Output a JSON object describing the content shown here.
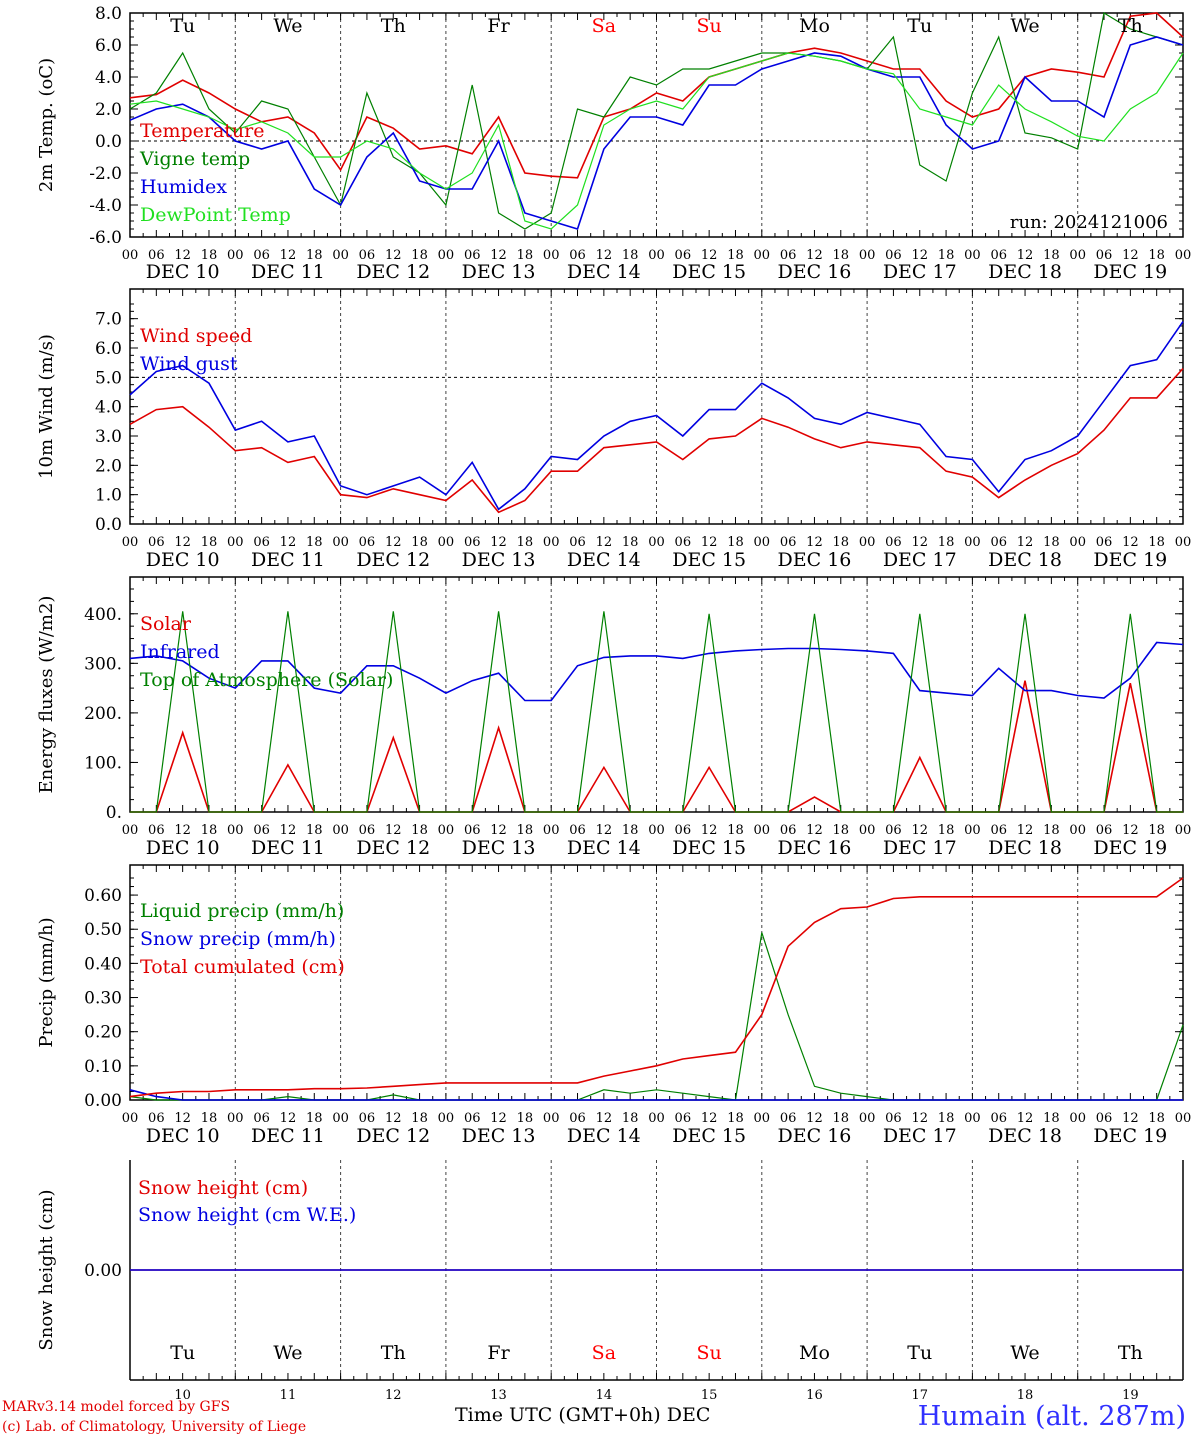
{
  "footer": {
    "credit_line1": "MARv3.14 model forced by GFS",
    "credit_line2": "(c) Lab. of Climatology, University of Liege",
    "x_axis_title": "Time UTC (GMT+0h) DEC",
    "station": "Humain (alt. 287m)"
  },
  "days": {
    "weekday_labels": [
      "Tu",
      "We",
      "Th",
      "Fr",
      "Sa",
      "Su",
      "Mo",
      "Tu",
      "We",
      "Th"
    ],
    "weekend_indices": [
      4,
      5
    ],
    "date_labels": [
      "DEC 10",
      "DEC 11",
      "DEC 12",
      "DEC 13",
      "DEC 14",
      "DEC 15",
      "DEC 16",
      "DEC 17",
      "DEC 18",
      "DEC 19"
    ],
    "day_numbers": [
      "10",
      "11",
      "12",
      "13",
      "14",
      "15",
      "16",
      "17",
      "18",
      "19"
    ],
    "hour_ticks": [
      "00",
      "06",
      "12",
      "18"
    ],
    "final_hour": "00"
  },
  "colors": {
    "red": "#e00000",
    "green": "#008000",
    "blue": "#0000e0",
    "lightgreen": "#20e020",
    "weekend": "#ff0000"
  },
  "chart_data": [
    {
      "type": "line",
      "ylabel": "2m Temp. (oC)",
      "ylim": [
        -6,
        8
      ],
      "yticks": [
        "-6.0",
        "-4.0",
        "-2.0",
        "0.0",
        "2.0",
        "4.0",
        "6.0",
        "8.0"
      ],
      "annotation": "run: 2024121006",
      "x_hours": [
        0,
        6,
        12,
        18,
        24,
        30,
        36,
        42,
        48,
        54,
        60,
        66,
        72,
        78,
        84,
        90,
        96,
        102,
        108,
        114,
        120,
        126,
        132,
        138,
        144,
        150,
        156,
        162,
        168,
        174,
        180,
        186,
        192,
        198,
        204,
        210,
        216,
        222,
        228,
        234,
        240
      ],
      "series": [
        {
          "name": "Temperature",
          "color": "red",
          "values": [
            2.7,
            2.9,
            3.8,
            3.0,
            2.0,
            1.2,
            1.5,
            0.5,
            -1.8,
            1.5,
            0.8,
            -0.5,
            -0.3,
            -0.8,
            1.5,
            -2.0,
            -2.2,
            -2.3,
            1.5,
            2.0,
            3.0,
            2.5,
            4.0,
            4.5,
            5.0,
            5.5,
            5.8,
            5.5,
            5.0,
            4.5,
            4.5,
            2.5,
            1.5,
            2.0,
            4.0,
            4.5,
            4.3,
            4.0,
            7.8,
            8.0,
            6.5
          ]
        },
        {
          "name": "Vigne temp",
          "color": "green",
          "values": [
            2.0,
            3.0,
            5.5,
            2.0,
            0.5,
            2.5,
            2.0,
            -1.0,
            -4.0,
            3.0,
            -1.0,
            -2.0,
            -4.0,
            3.5,
            -4.5,
            -5.5,
            -4.5,
            2.0,
            1.5,
            4.0,
            3.5,
            4.5,
            4.5,
            5.0,
            5.5,
            5.5,
            5.3,
            5.0,
            4.5,
            6.5,
            -1.5,
            -2.5,
            3.0,
            6.5,
            0.5,
            0.2,
            -0.5,
            8.0,
            7.0,
            6.5,
            6.0
          ]
        },
        {
          "name": "Humidex",
          "color": "blue",
          "values": [
            1.3,
            2.0,
            2.3,
            1.5,
            0.0,
            -0.5,
            0.0,
            -3.0,
            -4.0,
            -1.0,
            0.5,
            -2.5,
            -3.0,
            -3.0,
            0.0,
            -4.5,
            -5.0,
            -5.5,
            -0.5,
            1.5,
            1.5,
            1.0,
            3.5,
            3.5,
            4.5,
            5.0,
            5.5,
            5.3,
            4.5,
            4.0,
            4.0,
            1.0,
            -0.5,
            0.0,
            4.0,
            2.5,
            2.5,
            1.5,
            6.0,
            6.5,
            6.0
          ]
        },
        {
          "name": "DewPoint Temp",
          "color": "lightgreen",
          "values": [
            2.3,
            2.5,
            2.0,
            1.5,
            0.7,
            1.2,
            0.5,
            -1.0,
            -1.0,
            0.0,
            -0.5,
            -2.0,
            -3.0,
            -2.0,
            1.0,
            -5.0,
            -5.5,
            -4.0,
            1.0,
            2.0,
            2.5,
            2.0,
            4.0,
            4.5,
            5.0,
            5.5,
            5.3,
            5.0,
            4.5,
            4.2,
            2.0,
            1.5,
            1.0,
            3.5,
            2.0,
            1.2,
            0.3,
            0.0,
            2.0,
            3.0,
            5.5
          ]
        }
      ]
    },
    {
      "type": "line",
      "ylabel": "10m Wind (m/s)",
      "ylim": [
        0,
        7.5
      ],
      "yticks": [
        "0.0",
        "1.0",
        "2.0",
        "3.0",
        "4.0",
        "5.0",
        "6.0",
        "7.0"
      ],
      "x_hours": [
        0,
        6,
        12,
        18,
        24,
        30,
        36,
        42,
        48,
        54,
        60,
        66,
        72,
        78,
        84,
        90,
        96,
        102,
        108,
        114,
        120,
        126,
        132,
        138,
        144,
        150,
        156,
        162,
        168,
        174,
        180,
        186,
        192,
        198,
        204,
        210,
        216,
        222,
        228,
        234,
        240
      ],
      "series": [
        {
          "name": "Wind speed",
          "color": "red",
          "values": [
            3.4,
            3.9,
            4.0,
            3.3,
            2.5,
            2.6,
            2.1,
            2.3,
            1.0,
            0.9,
            1.2,
            1.0,
            0.8,
            1.5,
            0.4,
            0.8,
            1.8,
            1.8,
            2.6,
            2.7,
            2.8,
            2.2,
            2.9,
            3.0,
            3.6,
            3.3,
            2.9,
            2.6,
            2.8,
            2.7,
            2.6,
            1.8,
            1.6,
            0.9,
            1.5,
            2.0,
            2.4,
            3.2,
            4.3,
            4.3,
            5.3
          ]
        },
        {
          "name": "Wind gust",
          "color": "blue",
          "values": [
            4.4,
            5.2,
            5.4,
            4.8,
            3.2,
            3.5,
            2.8,
            3.0,
            1.3,
            1.0,
            1.3,
            1.6,
            1.0,
            2.1,
            0.5,
            1.2,
            2.3,
            2.2,
            3.0,
            3.5,
            3.7,
            3.0,
            3.9,
            3.9,
            4.8,
            4.3,
            3.6,
            3.4,
            3.8,
            3.6,
            3.4,
            2.3,
            2.2,
            1.1,
            2.2,
            2.5,
            3.0,
            4.2,
            5.4,
            5.6,
            6.9
          ]
        }
      ]
    },
    {
      "type": "line",
      "ylabel": "Energy fluxes (W/m2)",
      "ylim": [
        0,
        450
      ],
      "yticks": [
        "0.",
        "100.",
        "200.",
        "300.",
        "400."
      ],
      "x_hours": [
        0,
        6,
        12,
        18,
        24,
        30,
        36,
        42,
        48,
        54,
        60,
        66,
        72,
        78,
        84,
        90,
        96,
        102,
        108,
        114,
        120,
        126,
        132,
        138,
        144,
        150,
        156,
        162,
        168,
        174,
        180,
        186,
        192,
        198,
        204,
        210,
        216,
        222,
        228,
        234,
        240
      ],
      "series": [
        {
          "name": "Solar",
          "color": "red",
          "values": [
            0,
            0,
            160,
            0,
            0,
            0,
            95,
            0,
            0,
            0,
            150,
            0,
            0,
            0,
            170,
            0,
            0,
            0,
            90,
            0,
            0,
            0,
            90,
            0,
            0,
            0,
            30,
            0,
            0,
            0,
            110,
            0,
            0,
            0,
            265,
            0,
            0,
            0,
            260,
            0,
            0
          ]
        },
        {
          "name": "Infrared",
          "color": "blue",
          "values": [
            310,
            315,
            305,
            270,
            250,
            305,
            305,
            250,
            240,
            295,
            295,
            270,
            240,
            265,
            280,
            225,
            225,
            295,
            312,
            315,
            315,
            310,
            320,
            325,
            328,
            330,
            330,
            328,
            325,
            320,
            245,
            240,
            235,
            290,
            245,
            245,
            235,
            230,
            270,
            342,
            338
          ]
        },
        {
          "name": "Top of Atmosphere (Solar)",
          "color": "green",
          "values": [
            0,
            0,
            405,
            0,
            0,
            0,
            405,
            0,
            0,
            0,
            405,
            0,
            0,
            0,
            405,
            0,
            0,
            0,
            405,
            0,
            0,
            0,
            400,
            0,
            0,
            0,
            400,
            0,
            0,
            0,
            400,
            0,
            0,
            0,
            400,
            0,
            0,
            0,
            400,
            0,
            0
          ]
        }
      ]
    },
    {
      "type": "line",
      "ylabel": "Precip (mm/h)",
      "ylim": [
        0,
        0.65
      ],
      "yticks": [
        "0.00",
        "0.10",
        "0.20",
        "0.30",
        "0.40",
        "0.50",
        "0.60"
      ],
      "x_hours": [
        0,
        6,
        12,
        18,
        24,
        30,
        36,
        42,
        48,
        54,
        60,
        66,
        72,
        78,
        84,
        90,
        96,
        102,
        108,
        114,
        120,
        126,
        132,
        138,
        144,
        150,
        156,
        162,
        168,
        174,
        180,
        186,
        192,
        198,
        204,
        210,
        216,
        222,
        228,
        234,
        240
      ],
      "series": [
        {
          "name": "Liquid precip (mm/h)",
          "color": "green",
          "values": [
            0.01,
            0.0,
            0.0,
            0.0,
            0.0,
            0.0,
            0.01,
            0.0,
            0.0,
            0.0,
            0.015,
            0.0,
            0.0,
            0.0,
            0.0,
            0.0,
            0.0,
            0.0,
            0.03,
            0.02,
            0.03,
            0.02,
            0.01,
            0.0,
            0.49,
            0.25,
            0.04,
            0.02,
            0.01,
            0.0,
            0.0,
            0.0,
            0.0,
            0.0,
            0.0,
            0.0,
            0.0,
            0.0,
            0.0,
            0.0,
            0.22
          ]
        },
        {
          "name": "Snow precip (mm/h)",
          "color": "blue",
          "values": [
            0.03,
            0.01,
            0.0,
            0.0,
            0.0,
            0.0,
            0.0,
            0.0,
            0.0,
            0.0,
            0.0,
            0.0,
            0.0,
            0.0,
            0.0,
            0.0,
            0.0,
            0.0,
            0.0,
            0.0,
            0.0,
            0.0,
            0.0,
            0.0,
            0.0,
            0.0,
            0.0,
            0.0,
            0.0,
            0.0,
            0.0,
            0.0,
            0.0,
            0.0,
            0.0,
            0.0,
            0.0,
            0.0,
            0.0,
            0.0,
            0.0
          ]
        },
        {
          "name": "Total cumulated (cm)",
          "color": "red",
          "values": [
            0.01,
            0.02,
            0.025,
            0.025,
            0.03,
            0.03,
            0.03,
            0.033,
            0.033,
            0.035,
            0.04,
            0.045,
            0.05,
            0.05,
            0.05,
            0.05,
            0.05,
            0.05,
            0.07,
            0.085,
            0.1,
            0.12,
            0.13,
            0.14,
            0.25,
            0.45,
            0.52,
            0.56,
            0.565,
            0.59,
            0.595,
            0.595,
            0.595,
            0.595,
            0.595,
            0.595,
            0.595,
            0.595,
            0.595,
            0.595,
            0.65
          ]
        }
      ]
    },
    {
      "type": "line",
      "ylabel": "Snow height (cm)",
      "ylim": [
        -1,
        1
      ],
      "yticks": [
        "0.00"
      ],
      "x_hours": [
        0,
        240
      ],
      "series": [
        {
          "name": "Snow height (cm)",
          "color": "red",
          "values": [
            0.0,
            0.0
          ]
        },
        {
          "name": "Snow height (cm W.E.)",
          "color": "blue",
          "values": [
            0.0,
            0.0
          ]
        }
      ]
    }
  ]
}
